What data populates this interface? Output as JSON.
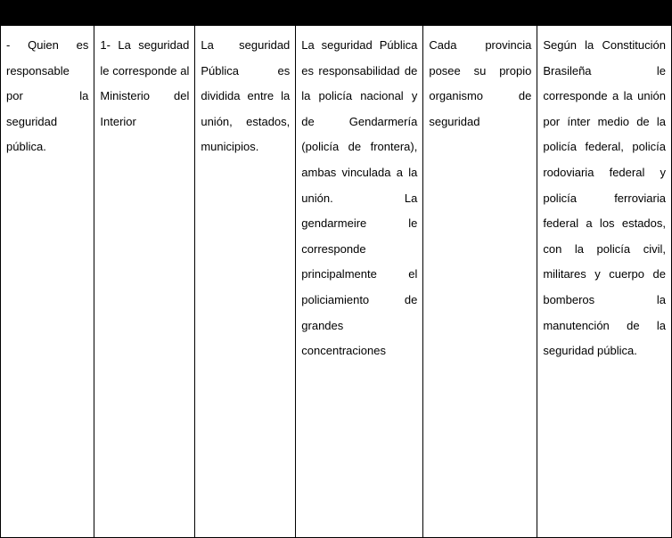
{
  "table": {
    "headers": [
      "",
      "",
      "",
      "",
      "",
      ""
    ],
    "row": {
      "c0": "- Quien es responsable por la seguridad pública.",
      "c1": "1- La seguridad le corresponde al Ministerio del Interior",
      "c2": "La seguridad Pública es dividida entre la unión, estados, municipios.",
      "c3": "La seguridad Pública es responsabilidad de la policía nacional y de Gendarmería (policía de frontera), ambas vinculada a la unión. La gendarmeire le corresponde principalmente el policiamiento de grandes concentraciones",
      "c4": "Cada provincia posee su propio organismo de seguridad",
      "c5": "Según la Constitución Brasileña le corresponde a la unión por ínter medio de la policía federal, policía rodoviaria federal y policía ferroviaria federal a los estados, con la policía civil, militares y cuerpo de bomberos la manutención de la seguridad pública."
    }
  }
}
